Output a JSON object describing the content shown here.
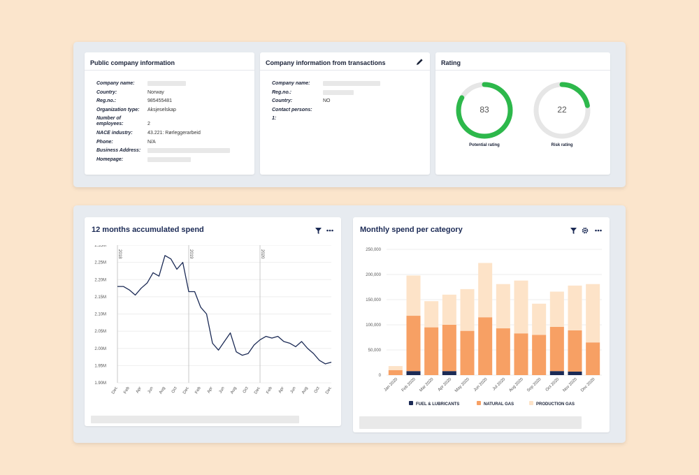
{
  "public_info": {
    "title": "Public company information",
    "rows": [
      {
        "label": "Company name:",
        "value": ""
      },
      {
        "label": "Country:",
        "value": "Norway"
      },
      {
        "label": "Reg.no.:",
        "value": "985455481"
      },
      {
        "label": "Organization type:",
        "value": "Aksjeselskap"
      },
      {
        "label": "Number of employees:",
        "value": "2"
      },
      {
        "label": "NACE industry:",
        "value": "43.221: Rørleggerarbeid"
      },
      {
        "label": "Phone:",
        "value": "N/A"
      },
      {
        "label": "Business Address:",
        "value": ""
      },
      {
        "label": "Homepage:",
        "value": ""
      }
    ]
  },
  "transactions_info": {
    "title": "Company information from transactions",
    "edit_icon": "pencil-icon",
    "rows": [
      {
        "label": "Company name:",
        "value": ""
      },
      {
        "label": "Reg.no.:",
        "value": ""
      },
      {
        "label": "Country:",
        "value": "NO"
      },
      {
        "label": "Contact persons:",
        "value": ""
      },
      {
        "label": "1:",
        "value": ""
      }
    ]
  },
  "rating": {
    "title": "Rating",
    "gauges": [
      {
        "value": "83",
        "fraction": 0.83,
        "label": "Potential rating"
      },
      {
        "value": "22",
        "fraction": 0.22,
        "label": "Risk rating"
      }
    ],
    "colors": {
      "fill": "#2db84b",
      "track": "#e6e6e6"
    }
  },
  "line_chart": {
    "title": "12 months accumulated spend",
    "icons": [
      "filter-icon",
      "more-icon"
    ]
  },
  "bar_chart": {
    "title": "Monthly spend per category",
    "icons": [
      "filter-icon",
      "gear-icon",
      "more-icon"
    ]
  },
  "chart_data": [
    {
      "type": "line",
      "title": "12 months accumulated spend",
      "x": [
        "Dec",
        "",
        "Feb",
        "",
        "Apr",
        "",
        "Jun",
        "",
        "Aug",
        "",
        "Oct",
        "",
        "Dec",
        "",
        "Feb",
        "",
        "Apr",
        "",
        "Jun",
        "",
        "Aug",
        "",
        "Oct",
        "",
        "Dec",
        "",
        "Feb",
        "",
        "Apr",
        "",
        "Jun",
        "",
        "Aug",
        "",
        "Oct",
        "",
        "Dec"
      ],
      "x_ticks": [
        "Dec",
        "Feb",
        "Apr",
        "Jun",
        "Aug",
        "Oct",
        "Dec",
        "Feb",
        "Apr",
        "Jun",
        "Aug",
        "Oct",
        "Dec",
        "Feb",
        "Apr",
        "Jun",
        "Aug",
        "Oct",
        "Dec"
      ],
      "y_ticks": [
        "2.35M",
        "2.25M",
        "2.20M",
        "2.15M",
        "2.10M",
        "2.05M",
        "2.00M",
        "1.95M",
        "1.90M"
      ],
      "ylim": [
        1.9,
        2.3
      ],
      "year_markers": [
        {
          "label": "2018",
          "at_index": 0
        },
        {
          "label": "2019",
          "at_index": 12
        },
        {
          "label": "2020",
          "at_index": 24
        }
      ],
      "series": [
        {
          "values": [
            2.18,
            2.18,
            2.17,
            2.155,
            2.175,
            2.19,
            2.22,
            2.21,
            2.27,
            2.26,
            2.23,
            2.25,
            2.165,
            2.165,
            2.12,
            2.1,
            2.015,
            1.995,
            2.02,
            2.045,
            1.99,
            1.98,
            1.985,
            2.01,
            2.025,
            2.035,
            2.03,
            2.035,
            2.02,
            2.015,
            2.005,
            2.02,
            2.0,
            1.985,
            1.965,
            1.955,
            1.96
          ]
        }
      ],
      "color": "#1b2a55"
    },
    {
      "type": "bar",
      "stacked": true,
      "title": "Monthly spend per category",
      "categories": [
        "Jan 2020",
        "Feb 2020",
        "Mar 2020",
        "Apr 2020",
        "May 2020",
        "Jun 2020",
        "Jul 2020",
        "Aug 2020",
        "Sep 2020",
        "Oct 2020",
        "Nov 2020",
        "Dec 2020"
      ],
      "y_ticks": [
        "250,000",
        "200,000",
        "150,000",
        "100,000",
        "50,000",
        "0"
      ],
      "ylim": [
        0,
        250000
      ],
      "series": [
        {
          "name": "FUEL & LUBRICANTS",
          "color": "#1b2a55",
          "values": [
            0,
            8000,
            0,
            8000,
            0,
            0,
            0,
            0,
            0,
            8000,
            7000,
            0
          ]
        },
        {
          "name": "NATURAL GAS",
          "color": "#f7a064",
          "values": [
            10000,
            110000,
            95000,
            92000,
            88000,
            115000,
            93000,
            83000,
            80000,
            88000,
            82000,
            65000
          ]
        },
        {
          "name": "PRODUCTION GAS",
          "color": "#fde3c8",
          "values": [
            8000,
            80000,
            52000,
            60000,
            83000,
            108000,
            88000,
            105000,
            62000,
            70000,
            89000,
            116000
          ]
        }
      ],
      "legend": "bottom"
    }
  ]
}
